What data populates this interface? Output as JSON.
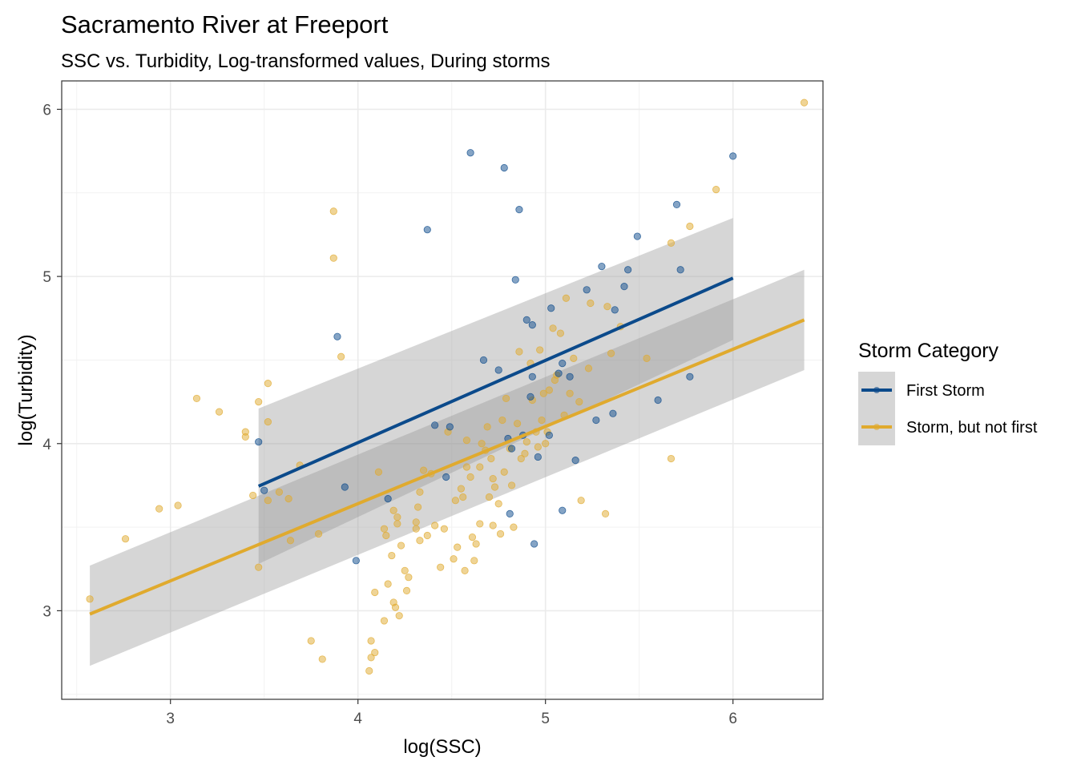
{
  "chart_data": {
    "type": "scatter",
    "title": "Sacramento River at Freeport",
    "subtitle": "SSC vs. Turbidity, Log-transformed values, During storms",
    "xlabel": "log(SSC)",
    "ylabel": "log(Turbidity)",
    "xlim": [
      2.42,
      6.48
    ],
    "ylim": [
      2.47,
      6.17
    ],
    "x_ticks": [
      3,
      4,
      5,
      6
    ],
    "y_ticks": [
      3,
      4,
      5,
      6
    ],
    "grid": true,
    "legend": {
      "title": "Storm Category",
      "position": "right",
      "entries": [
        "First Storm",
        "Storm, but not first"
      ]
    },
    "series": [
      {
        "name": "First Storm",
        "color": "#0b4a8b",
        "points": [
          [
            3.47,
            4.01
          ],
          [
            3.5,
            3.72
          ],
          [
            3.89,
            4.64
          ],
          [
            3.93,
            3.74
          ],
          [
            3.99,
            3.3
          ],
          [
            4.16,
            3.67
          ],
          [
            4.37,
            5.28
          ],
          [
            4.41,
            4.11
          ],
          [
            4.47,
            3.8
          ],
          [
            4.49,
            4.1
          ],
          [
            4.6,
            5.74
          ],
          [
            4.67,
            4.5
          ],
          [
            4.75,
            4.44
          ],
          [
            4.78,
            5.65
          ],
          [
            4.8,
            4.03
          ],
          [
            4.81,
            3.58
          ],
          [
            4.82,
            3.97
          ],
          [
            4.84,
            4.98
          ],
          [
            4.86,
            5.4
          ],
          [
            4.88,
            4.05
          ],
          [
            4.9,
            4.74
          ],
          [
            4.92,
            4.28
          ],
          [
            4.93,
            4.71
          ],
          [
            4.93,
            4.4
          ],
          [
            4.94,
            3.4
          ],
          [
            4.96,
            3.92
          ],
          [
            5.02,
            4.05
          ],
          [
            5.03,
            4.81
          ],
          [
            5.07,
            4.42
          ],
          [
            5.09,
            4.48
          ],
          [
            5.09,
            3.6
          ],
          [
            5.13,
            4.4
          ],
          [
            5.16,
            3.9
          ],
          [
            5.22,
            4.92
          ],
          [
            5.27,
            4.14
          ],
          [
            5.3,
            5.06
          ],
          [
            5.36,
            4.18
          ],
          [
            5.37,
            4.8
          ],
          [
            5.42,
            4.94
          ],
          [
            5.44,
            5.04
          ],
          [
            5.49,
            5.24
          ],
          [
            5.6,
            4.26
          ],
          [
            5.7,
            5.43
          ],
          [
            5.72,
            5.04
          ],
          [
            5.77,
            4.4
          ],
          [
            6.0,
            5.72
          ]
        ],
        "fit": {
          "x": [
            3.47,
            6.0
          ],
          "y": [
            3.745,
            4.99
          ]
        },
        "ci_upper": [
          4.21,
          5.35
        ],
        "ci_lower": [
          3.28,
          4.62
        ]
      },
      {
        "name": "Storm, but not first",
        "color": "#e0aa2e",
        "points": [
          [
            2.57,
            3.07
          ],
          [
            2.76,
            3.43
          ],
          [
            2.94,
            3.61
          ],
          [
            3.04,
            3.63
          ],
          [
            3.14,
            4.27
          ],
          [
            3.26,
            4.19
          ],
          [
            3.4,
            4.07
          ],
          [
            3.4,
            4.04
          ],
          [
            3.44,
            3.69
          ],
          [
            3.47,
            3.26
          ],
          [
            3.47,
            4.25
          ],
          [
            3.52,
            4.36
          ],
          [
            3.52,
            4.13
          ],
          [
            3.52,
            3.66
          ],
          [
            3.58,
            3.71
          ],
          [
            3.63,
            3.67
          ],
          [
            3.64,
            3.42
          ],
          [
            3.69,
            3.87
          ],
          [
            3.75,
            2.82
          ],
          [
            3.79,
            3.46
          ],
          [
            3.81,
            2.71
          ],
          [
            3.87,
            5.39
          ],
          [
            3.87,
            5.11
          ],
          [
            3.91,
            4.52
          ],
          [
            4.06,
            2.64
          ],
          [
            4.07,
            2.82
          ],
          [
            4.07,
            2.72
          ],
          [
            4.09,
            2.75
          ],
          [
            4.09,
            3.11
          ],
          [
            4.11,
            3.83
          ],
          [
            4.14,
            2.94
          ],
          [
            4.14,
            3.49
          ],
          [
            4.15,
            3.45
          ],
          [
            4.16,
            3.16
          ],
          [
            4.18,
            3.33
          ],
          [
            4.19,
            3.6
          ],
          [
            4.19,
            3.05
          ],
          [
            4.2,
            3.02
          ],
          [
            4.21,
            3.56
          ],
          [
            4.21,
            3.52
          ],
          [
            4.22,
            2.97
          ],
          [
            4.23,
            3.39
          ],
          [
            4.25,
            3.24
          ],
          [
            4.26,
            3.12
          ],
          [
            4.27,
            3.2
          ],
          [
            4.31,
            3.53
          ],
          [
            4.31,
            3.49
          ],
          [
            4.32,
            3.62
          ],
          [
            4.33,
            3.42
          ],
          [
            4.33,
            3.71
          ],
          [
            4.35,
            3.84
          ],
          [
            4.37,
            3.45
          ],
          [
            4.39,
            3.82
          ],
          [
            4.41,
            3.51
          ],
          [
            4.44,
            3.26
          ],
          [
            4.46,
            3.49
          ],
          [
            4.48,
            4.07
          ],
          [
            4.51,
            3.31
          ],
          [
            4.52,
            3.66
          ],
          [
            4.53,
            3.38
          ],
          [
            4.55,
            3.73
          ],
          [
            4.56,
            3.68
          ],
          [
            4.57,
            3.24
          ],
          [
            4.58,
            4.02
          ],
          [
            4.58,
            3.86
          ],
          [
            4.6,
            3.8
          ],
          [
            4.61,
            3.44
          ],
          [
            4.62,
            3.3
          ],
          [
            4.63,
            3.4
          ],
          [
            4.65,
            3.86
          ],
          [
            4.65,
            3.52
          ],
          [
            4.66,
            4.0
          ],
          [
            4.68,
            3.96
          ],
          [
            4.69,
            4.1
          ],
          [
            4.7,
            3.68
          ],
          [
            4.71,
            3.91
          ],
          [
            4.72,
            3.79
          ],
          [
            4.72,
            3.51
          ],
          [
            4.73,
            3.74
          ],
          [
            4.75,
            3.64
          ],
          [
            4.76,
            3.46
          ],
          [
            4.77,
            4.14
          ],
          [
            4.78,
            3.83
          ],
          [
            4.79,
            4.27
          ],
          [
            4.81,
            3.97
          ],
          [
            4.82,
            3.75
          ],
          [
            4.83,
            3.5
          ],
          [
            4.85,
            4.12
          ],
          [
            4.86,
            4.55
          ],
          [
            4.87,
            3.91
          ],
          [
            4.89,
            3.94
          ],
          [
            4.9,
            4.01
          ],
          [
            4.92,
            4.48
          ],
          [
            4.93,
            4.26
          ],
          [
            4.95,
            4.07
          ],
          [
            4.96,
            3.98
          ],
          [
            4.97,
            4.56
          ],
          [
            4.98,
            4.14
          ],
          [
            4.99,
            4.3
          ],
          [
            5.0,
            4.0
          ],
          [
            5.01,
            4.07
          ],
          [
            5.02,
            4.32
          ],
          [
            5.04,
            4.69
          ],
          [
            5.05,
            4.38
          ],
          [
            5.06,
            4.41
          ],
          [
            5.08,
            4.66
          ],
          [
            5.1,
            4.17
          ],
          [
            5.11,
            4.87
          ],
          [
            5.13,
            4.3
          ],
          [
            5.15,
            4.51
          ],
          [
            5.18,
            4.25
          ],
          [
            5.19,
            3.66
          ],
          [
            5.23,
            4.45
          ],
          [
            5.24,
            4.84
          ],
          [
            5.32,
            3.58
          ],
          [
            5.33,
            4.82
          ],
          [
            5.35,
            4.54
          ],
          [
            5.4,
            4.7
          ],
          [
            5.54,
            4.51
          ],
          [
            5.67,
            5.2
          ],
          [
            5.67,
            3.91
          ],
          [
            5.77,
            5.3
          ],
          [
            5.91,
            5.52
          ],
          [
            6.38,
            6.04
          ]
        ],
        "fit": {
          "x": [
            2.57,
            6.38
          ],
          "y": [
            2.98,
            4.74
          ]
        },
        "ci_upper": [
          3.27,
          5.04
        ],
        "ci_lower": [
          2.67,
          4.44
        ]
      }
    ]
  }
}
